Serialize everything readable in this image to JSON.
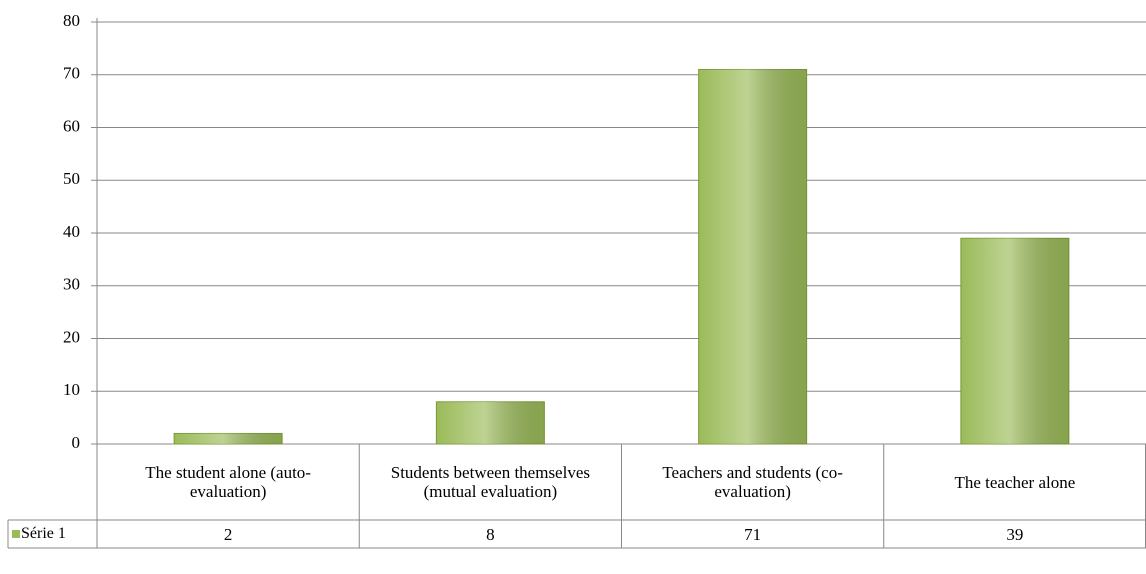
{
  "chart_data": {
    "type": "bar",
    "categories": [
      "The student alone (auto-evaluation)",
      "Students between themselves (mutual evaluation)",
      "Teachers and students (co-evaluation)",
      "The teacher alone"
    ],
    "series": [
      {
        "name": "Série 1",
        "color": "#9bbb59",
        "values": [
          2,
          8,
          71,
          39
        ]
      }
    ],
    "ylim": [
      0,
      80
    ],
    "yticks": [
      0,
      10,
      20,
      30,
      40,
      50,
      60,
      70,
      80
    ],
    "grid": true,
    "data_table": true
  }
}
